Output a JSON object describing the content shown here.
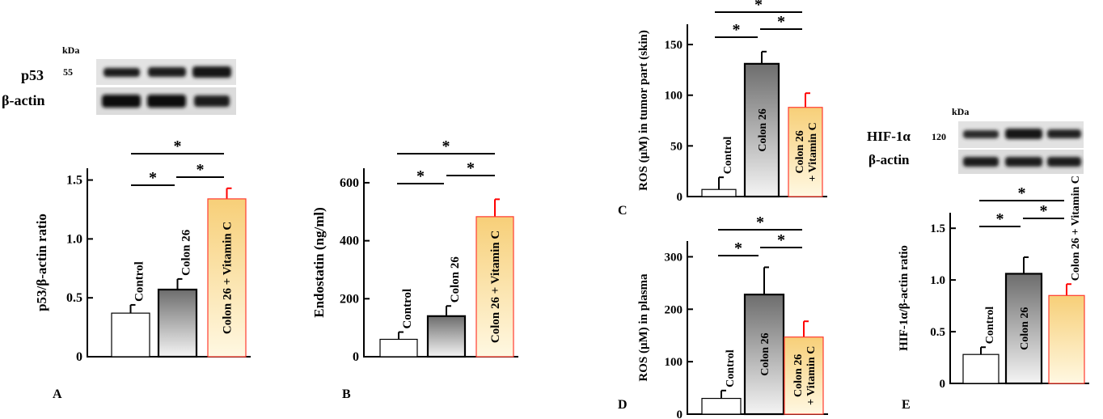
{
  "panels": {
    "A": {
      "letter": "A"
    },
    "B": {
      "letter": "B"
    },
    "C": {
      "letter": "C"
    },
    "D": {
      "letter": "D"
    },
    "E": {
      "letter": "E"
    }
  },
  "blots": {
    "A": {
      "kda_label": "kDa",
      "protein": "p53",
      "kda": "55",
      "loading_control": "β-actin"
    },
    "E": {
      "kda_label": "kDa",
      "protein": "HIF-1α",
      "kda": "120",
      "loading_control": "β-actin"
    }
  },
  "significance_marker": "*",
  "colors": {
    "control": "#ffffff",
    "colon26_dark": "#6d6d6d",
    "colon26_light": "#f2f2f2",
    "vitc_dark": "#f7cf78",
    "vitc_light": "#fff6dc",
    "vitc_border": "#ff3b30",
    "error_red": "#ff0000",
    "axis": "#000000"
  },
  "chart_data": [
    {
      "panel": "A",
      "type": "bar",
      "categories": [
        "Control",
        "Colon 26",
        "Colon 26 + Vitamin C"
      ],
      "values": [
        0.37,
        0.57,
        1.34
      ],
      "errors": [
        0.07,
        0.09,
        0.09
      ],
      "ylabel": "p53/β-actin ratio",
      "ylim": [
        0,
        1.6
      ],
      "yticks": [
        "0",
        "0.5",
        "1.0",
        "1.5"
      ],
      "ytick_values": [
        0,
        0.5,
        1.0,
        1.5
      ]
    },
    {
      "panel": "B",
      "type": "bar",
      "categories": [
        "Control",
        "Colon 26",
        "Colon 26 + Vitamin C"
      ],
      "values": [
        60,
        140,
        483
      ],
      "errors": [
        25,
        35,
        60
      ],
      "ylabel": "Endostatin (ng/ml)",
      "ylim": [
        0,
        650
      ],
      "yticks": [
        "0",
        "200",
        "400",
        "600"
      ],
      "ytick_values": [
        0,
        200,
        400,
        600
      ]
    },
    {
      "panel": "C",
      "type": "bar",
      "categories": [
        "Control",
        "Colon 26",
        "Colon 26\n+ Vitamin C"
      ],
      "values": [
        7,
        131,
        88
      ],
      "errors": [
        12,
        12,
        14
      ],
      "ylabel": "ROS (μM) in tumor part (skin)",
      "ylim": [
        0,
        170
      ],
      "yticks": [
        "0",
        "50",
        "100",
        "150"
      ],
      "ytick_values": [
        0,
        50,
        100,
        150
      ]
    },
    {
      "panel": "D",
      "type": "bar",
      "categories": [
        "Control",
        "Colon 26",
        "Colon 26\n+ Vitamin C"
      ],
      "values": [
        30,
        228,
        147
      ],
      "errors": [
        15,
        52,
        30
      ],
      "ylabel": "ROS (μM) in plasma",
      "ylim": [
        0,
        330
      ],
      "yticks": [
        "0",
        "100",
        "200",
        "300"
      ],
      "ytick_values": [
        0,
        100,
        200,
        300
      ]
    },
    {
      "panel": "E",
      "type": "bar",
      "categories": [
        "Control",
        "Colon 26",
        "Colon 26 + Vitamin C"
      ],
      "values": [
        0.28,
        1.06,
        0.85
      ],
      "errors": [
        0.07,
        0.16,
        0.11
      ],
      "ylabel": "HIF-1α/β-actin ratio",
      "ylim": [
        0,
        1.65
      ],
      "yticks": [
        "0",
        "0.5",
        "1.0",
        "1.5"
      ],
      "ytick_values": [
        0,
        0.5,
        1.0,
        1.5
      ]
    }
  ]
}
